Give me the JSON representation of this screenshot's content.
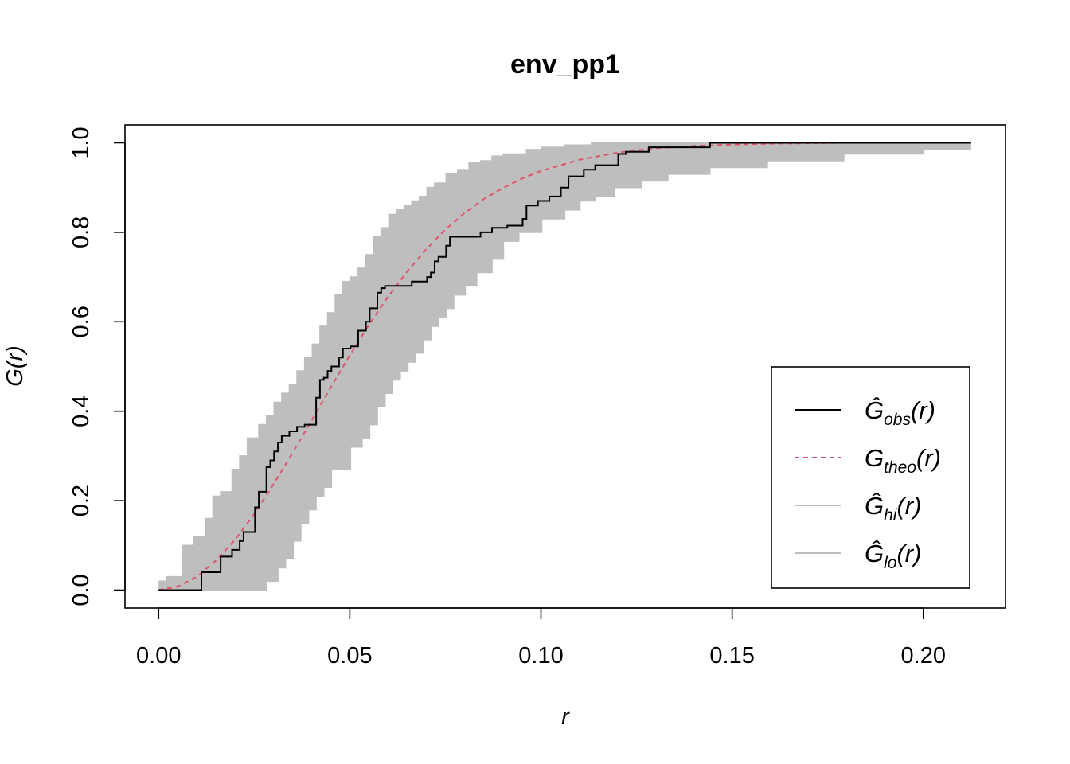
{
  "chart_data": {
    "type": "line",
    "title": "env_pp1",
    "xlabel": "r",
    "ylabel": "G(r)",
    "xlim": [
      -0.0088,
      0.2215
    ],
    "ylim": [
      -0.04,
      1.04
    ],
    "xticks": [
      "0.00",
      "0.05",
      "0.10",
      "0.15",
      "0.20"
    ],
    "xtick_values": [
      0.0,
      0.05,
      0.1,
      0.15,
      0.2
    ],
    "yticks": [
      "0.0",
      "0.2",
      "0.4",
      "0.6",
      "0.8",
      "1.0"
    ],
    "ytick_values": [
      0.0,
      0.2,
      0.4,
      0.6,
      0.8,
      1.0
    ],
    "grid": false,
    "legend_position": "bottom-right",
    "colors": {
      "obs": "#000000",
      "theo": "#DF536B",
      "envelope": "#BEBEBE"
    },
    "legend": [
      {
        "key": "obs",
        "base": "Ĝ",
        "sub": "obs",
        "suffix": "(r)",
        "style": "solid",
        "color": "#000000"
      },
      {
        "key": "theo",
        "base": "G",
        "sub": "theo",
        "suffix": "(r)",
        "style": "dashed",
        "color": "#DF536B"
      },
      {
        "key": "hi",
        "base": "Ĝ",
        "sub": "hi",
        "suffix": "(r)",
        "style": "solid",
        "color": "#BEBEBE"
      },
      {
        "key": "lo",
        "base": "Ĝ",
        "sub": "lo",
        "suffix": "(r)",
        "style": "solid",
        "color": "#BEBEBE"
      }
    ],
    "series": [
      {
        "name": "obs",
        "step": true,
        "x": [
          0.0,
          0.0102,
          0.0112,
          0.0162,
          0.0192,
          0.0212,
          0.0222,
          0.0252,
          0.0262,
          0.0282,
          0.0292,
          0.0302,
          0.0312,
          0.0322,
          0.0342,
          0.0362,
          0.0382,
          0.0412,
          0.0422,
          0.0432,
          0.0442,
          0.0452,
          0.0472,
          0.0482,
          0.0502,
          0.0522,
          0.0542,
          0.0552,
          0.0572,
          0.0582,
          0.0592,
          0.0602,
          0.0662,
          0.0702,
          0.0712,
          0.0722,
          0.0732,
          0.0752,
          0.0762,
          0.0782,
          0.0842,
          0.0872,
          0.0912,
          0.0952,
          0.0962,
          0.0992,
          0.1022,
          0.1052,
          0.1072,
          0.1112,
          0.1142,
          0.1202,
          0.1222,
          0.1282,
          0.1442,
          0.2125
        ],
        "y": [
          0.0,
          0.0,
          0.04,
          0.075,
          0.09,
          0.11,
          0.13,
          0.185,
          0.22,
          0.275,
          0.29,
          0.31,
          0.33,
          0.345,
          0.355,
          0.365,
          0.37,
          0.43,
          0.47,
          0.475,
          0.49,
          0.5,
          0.52,
          0.54,
          0.545,
          0.58,
          0.6,
          0.63,
          0.665,
          0.675,
          0.68,
          0.68,
          0.69,
          0.7,
          0.71,
          0.735,
          0.745,
          0.77,
          0.79,
          0.79,
          0.8,
          0.81,
          0.815,
          0.83,
          0.86,
          0.87,
          0.88,
          0.9,
          0.925,
          0.94,
          0.95,
          0.975,
          0.98,
          0.99,
          1.0,
          1.0
        ]
      },
      {
        "name": "theo",
        "step": false,
        "x": [
          0.0,
          0.005,
          0.01,
          0.015,
          0.02,
          0.025,
          0.03,
          0.035,
          0.04,
          0.045,
          0.05,
          0.055,
          0.06,
          0.065,
          0.07,
          0.075,
          0.08,
          0.085,
          0.09,
          0.095,
          0.1,
          0.11,
          0.12,
          0.13,
          0.14,
          0.15,
          0.16,
          0.17,
          0.18,
          0.19,
          0.2,
          0.2125
        ],
        "y": [
          0.0,
          0.008,
          0.03,
          0.066,
          0.113,
          0.17,
          0.236,
          0.306,
          0.379,
          0.453,
          0.525,
          0.593,
          0.656,
          0.712,
          0.762,
          0.806,
          0.843,
          0.874,
          0.899,
          0.92,
          0.937,
          0.962,
          0.978,
          0.988,
          0.993,
          0.996,
          0.998,
          0.999,
          1.0,
          1.0,
          1.0,
          1.0
        ]
      },
      {
        "name": "hi",
        "step": true,
        "x": [
          0.0,
          0.0022,
          0.0062,
          0.0092,
          0.0122,
          0.0142,
          0.0162,
          0.0192,
          0.0212,
          0.0232,
          0.0262,
          0.0282,
          0.0302,
          0.0322,
          0.0342,
          0.0362,
          0.0382,
          0.0402,
          0.0422,
          0.0442,
          0.0462,
          0.0482,
          0.0502,
          0.0522,
          0.0542,
          0.0562,
          0.0582,
          0.0602,
          0.0622,
          0.0642,
          0.0662,
          0.0682,
          0.0702,
          0.0722,
          0.0752,
          0.0782,
          0.0812,
          0.0842,
          0.0872,
          0.0902,
          0.0962,
          0.1002,
          0.1062,
          0.1132,
          0.1202,
          0.1292,
          0.2125
        ],
        "y": [
          0.02,
          0.03,
          0.1,
          0.12,
          0.16,
          0.21,
          0.22,
          0.27,
          0.3,
          0.34,
          0.37,
          0.39,
          0.42,
          0.44,
          0.46,
          0.49,
          0.52,
          0.55,
          0.59,
          0.62,
          0.66,
          0.69,
          0.7,
          0.72,
          0.75,
          0.79,
          0.81,
          0.84,
          0.85,
          0.86,
          0.87,
          0.88,
          0.9,
          0.91,
          0.93,
          0.94,
          0.955,
          0.96,
          0.97,
          0.975,
          0.985,
          0.99,
          0.995,
          1.0,
          1.0,
          1.0,
          1.0
        ]
      },
      {
        "name": "lo",
        "step": true,
        "x": [
          0.0,
          0.0162,
          0.0242,
          0.0282,
          0.0312,
          0.0332,
          0.0352,
          0.0372,
          0.0392,
          0.0412,
          0.0432,
          0.0452,
          0.0472,
          0.0502,
          0.0532,
          0.0552,
          0.0572,
          0.0592,
          0.0612,
          0.0632,
          0.0652,
          0.0672,
          0.0692,
          0.0712,
          0.0732,
          0.0752,
          0.0772,
          0.0802,
          0.0832,
          0.0872,
          0.0902,
          0.0942,
          0.1002,
          0.1062,
          0.1102,
          0.1142,
          0.1192,
          0.1262,
          0.1332,
          0.1442,
          0.1592,
          0.1792,
          0.2,
          0.2125
        ],
        "y": [
          0.0,
          0.0,
          0.0,
          0.02,
          0.05,
          0.07,
          0.11,
          0.15,
          0.18,
          0.21,
          0.23,
          0.27,
          0.27,
          0.32,
          0.34,
          0.37,
          0.41,
          0.44,
          0.47,
          0.49,
          0.51,
          0.53,
          0.56,
          0.59,
          0.61,
          0.63,
          0.66,
          0.68,
          0.71,
          0.74,
          0.78,
          0.8,
          0.83,
          0.85,
          0.87,
          0.88,
          0.9,
          0.915,
          0.93,
          0.945,
          0.96,
          0.975,
          0.985,
          0.985
        ]
      }
    ]
  }
}
